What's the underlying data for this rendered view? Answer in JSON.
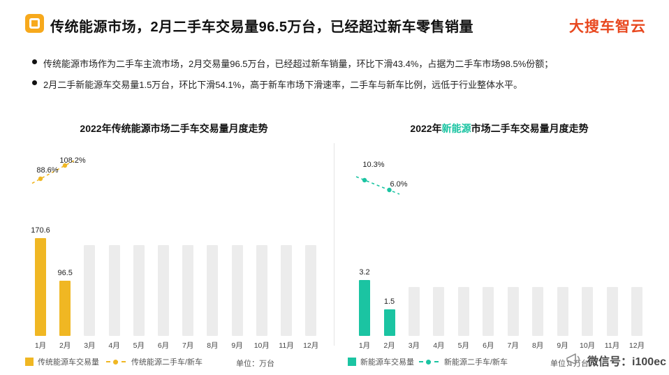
{
  "colors": {
    "brand_icon": "#F7A91C",
    "logo": "#E8481F",
    "traditional": "#F0B723",
    "new_energy": "#1BC4A2",
    "placeholder": "#ECECEC"
  },
  "header": {
    "title": "传统能源市场，2月二手车交易量96.5万台，已经超过新车零售销量",
    "logo_text": "大搜车智云"
  },
  "bullets": [
    {
      "text": "传统能源市场作为二手车主流市场，2月交易量96.5万台，已经超过新车销量，环比下滑43.4%，占据为二手车市场98.5%份额；"
    },
    {
      "text": "2月二手新能源车交易量1.5万台，环比下滑54.1%，高于新车市场下滑速率，二手车与新车比例，远低于行业整体水平。"
    }
  ],
  "chart_data": [
    {
      "type": "bar",
      "title": "2022年传统能源市场二手车交易量月度走势",
      "title_prefix": "2022年传统能源市场二手车交易量月度走势",
      "title_highlight": "",
      "title_suffix": "",
      "categories": [
        "1月",
        "2月",
        "3月",
        "4月",
        "5月",
        "6月",
        "7月",
        "8月",
        "9月",
        "10月",
        "11月",
        "12月"
      ],
      "series": [
        {
          "name": "传统能源车交易量",
          "type": "bar",
          "values": [
            170.6,
            96.5,
            null,
            null,
            null,
            null,
            null,
            null,
            null,
            null,
            null,
            null
          ]
        },
        {
          "name": "传统能源二手车/新车",
          "type": "line",
          "values": [
            88.6,
            108.2
          ],
          "value_labels": [
            "88.6%",
            "108.2%"
          ]
        }
      ],
      "unit_label": "单位：万台",
      "legend_position": "bottom"
    },
    {
      "type": "bar",
      "title": "2022年新能源市场二手车交易量月度走势",
      "title_prefix": "2022年",
      "title_highlight": "新能源",
      "title_suffix": "市场二手车交易量月度走势",
      "categories": [
        "1月",
        "2月",
        "3月",
        "4月",
        "5月",
        "6月",
        "7月",
        "8月",
        "9月",
        "10月",
        "11月",
        "12月"
      ],
      "series": [
        {
          "name": "新能源车交易量",
          "type": "bar",
          "values": [
            3.2,
            1.5,
            null,
            null,
            null,
            null,
            null,
            null,
            null,
            null,
            null,
            null
          ]
        },
        {
          "name": "新能源二手车/新车",
          "type": "line",
          "values": [
            10.3,
            6.0
          ],
          "value_labels": [
            "10.3%",
            "6.0%"
          ]
        }
      ],
      "unit_label": "单位：万台",
      "legend_position": "bottom"
    }
  ],
  "watermark": {
    "text": "微信号：i100ec"
  }
}
